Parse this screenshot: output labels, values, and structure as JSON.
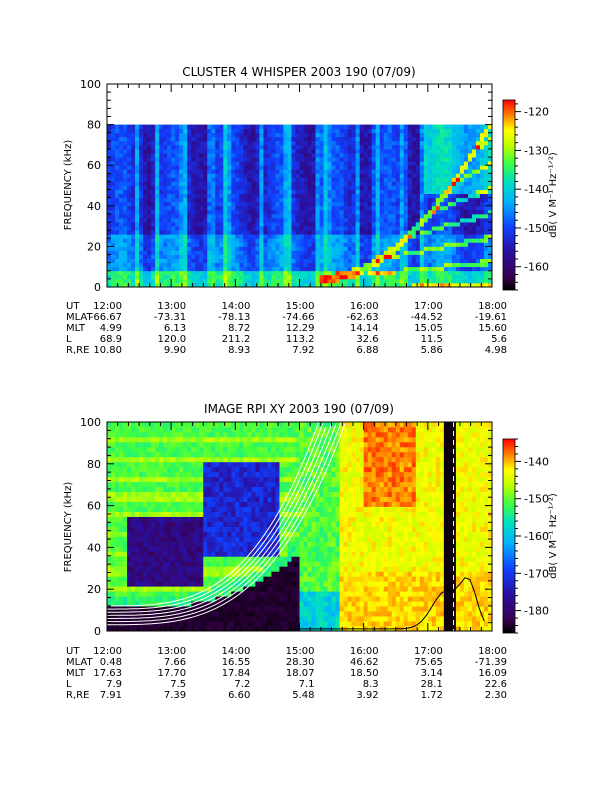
{
  "chart_data": [
    {
      "type": "heatmap",
      "title": "CLUSTER 4 WHISPER 2003 190 (07/09)",
      "ylabel": "FREQUENCY (kHz)",
      "ylim": [
        0,
        100
      ],
      "y_ticks": [
        "0",
        "20",
        "40",
        "60",
        "80",
        "100"
      ],
      "x_ticks": [
        "12:00",
        "13:00",
        "14:00",
        "15:00",
        "16:00",
        "17:00",
        "18:00"
      ],
      "data_top_khz": 80,
      "colorbar": {
        "label": "dB( V M⁻¹ Hz⁻¹ᐟ²)",
        "range": [
          -166,
          -117
        ],
        "ticks": [
          "-120",
          "-130",
          "-140",
          "-150",
          "-160"
        ],
        "tick_values": [
          -120,
          -130,
          -140,
          -150,
          -160
        ]
      },
      "ephemeris": [
        {
          "label": "UT",
          "values": [
            "12:00",
            "13:00",
            "14:00",
            "15:00",
            "16:00",
            "17:00",
            "18:00"
          ]
        },
        {
          "label": "MLAT",
          "values": [
            "-66.67",
            "-73.31",
            "-78.13",
            "-74.66",
            "-62.63",
            "-44.52",
            "-19.61"
          ]
        },
        {
          "label": "MLT",
          "values": [
            "4.99",
            "6.13",
            "8.72",
            "12.29",
            "14.14",
            "15.05",
            "15.60"
          ]
        },
        {
          "label": "L",
          "values": [
            "68.9",
            "120.0",
            "211.2",
            "113.2",
            "32.6",
            "11.5",
            "5.6"
          ]
        },
        {
          "label": "R,RE",
          "values": [
            "10.80",
            "9.90",
            "8.93",
            "7.92",
            "6.88",
            "5.86",
            "4.98"
          ]
        }
      ]
    },
    {
      "type": "heatmap",
      "title": "IMAGE RPI XY 2003 190 (07/09)",
      "ylabel": "FREQUENCY (kHz)",
      "ylim": [
        0,
        100
      ],
      "y_ticks": [
        "0",
        "20",
        "40",
        "60",
        "80",
        "100"
      ],
      "x_ticks": [
        "12:00",
        "13:00",
        "14:00",
        "15:00",
        "16:00",
        "17:00",
        "18:00"
      ],
      "colorbar": {
        "label": "dB( V M⁻¹ Hz⁻¹ᐟ²)",
        "range": [
          -186,
          -134
        ],
        "ticks": [
          "-140",
          "-150",
          "-160",
          "-170",
          "-180"
        ],
        "tick_values": [
          -140,
          -150,
          -160,
          -170,
          -180
        ]
      },
      "ephemeris": [
        {
          "label": "UT",
          "values": [
            "12:00",
            "13:00",
            "14:00",
            "15:00",
            "16:00",
            "17:00",
            "18:00"
          ]
        },
        {
          "label": "MLAT",
          "values": [
            "0.48",
            "7.66",
            "16.55",
            "28.30",
            "46.62",
            "75.65",
            "-71.39"
          ]
        },
        {
          "label": "MLT",
          "values": [
            "17.63",
            "17.70",
            "17.84",
            "18.07",
            "18.50",
            "3.14",
            "16.09"
          ]
        },
        {
          "label": "L",
          "values": [
            "7.9",
            "7.5",
            "7.2",
            "7.1",
            "8.3",
            "28.1",
            "22.6"
          ]
        },
        {
          "label": "R,RE",
          "values": [
            "7.91",
            "7.39",
            "6.60",
            "5.48",
            "3.92",
            "1.72",
            "2.30"
          ]
        }
      ]
    }
  ]
}
